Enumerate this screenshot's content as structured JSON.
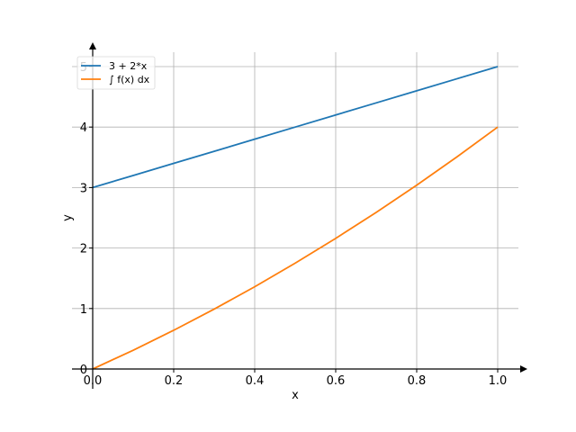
{
  "chart_data": {
    "type": "line",
    "title": "",
    "xlabel": "x",
    "ylabel": "y",
    "xlim": [
      0,
      1.05
    ],
    "ylim": [
      0,
      5.25
    ],
    "grid": true,
    "legend_position": "top-left",
    "x_ticks": [
      0,
      0.2,
      0.4,
      0.6,
      0.8,
      1.0
    ],
    "x_tick_labels": [
      "0.0",
      "0.2",
      "0.4",
      "0.6",
      "0.8",
      "1.0"
    ],
    "y_ticks": [
      0,
      1,
      2,
      3,
      4,
      5
    ],
    "y_tick_labels": [
      "0",
      "1",
      "2",
      "3",
      "4",
      "5"
    ],
    "series": [
      {
        "name": "3 + 2*x",
        "color": "#1f77b4",
        "x": [
          0,
          0.1,
          0.2,
          0.3,
          0.4,
          0.5,
          0.6,
          0.7,
          0.8,
          0.9,
          1.0
        ],
        "y": [
          3.0,
          3.2,
          3.4,
          3.6,
          3.8,
          4.0,
          4.2,
          4.4,
          4.6,
          4.8,
          5.0
        ]
      },
      {
        "name": "∫ f(x) dx",
        "color": "#ff7f0e",
        "x": [
          0,
          0.1,
          0.2,
          0.3,
          0.4,
          0.5,
          0.6,
          0.7,
          0.8,
          0.9,
          1.0
        ],
        "y": [
          0,
          0.31,
          0.64,
          0.99,
          1.36,
          1.75,
          2.16,
          2.59,
          3.04,
          3.51,
          4.0
        ]
      }
    ]
  }
}
